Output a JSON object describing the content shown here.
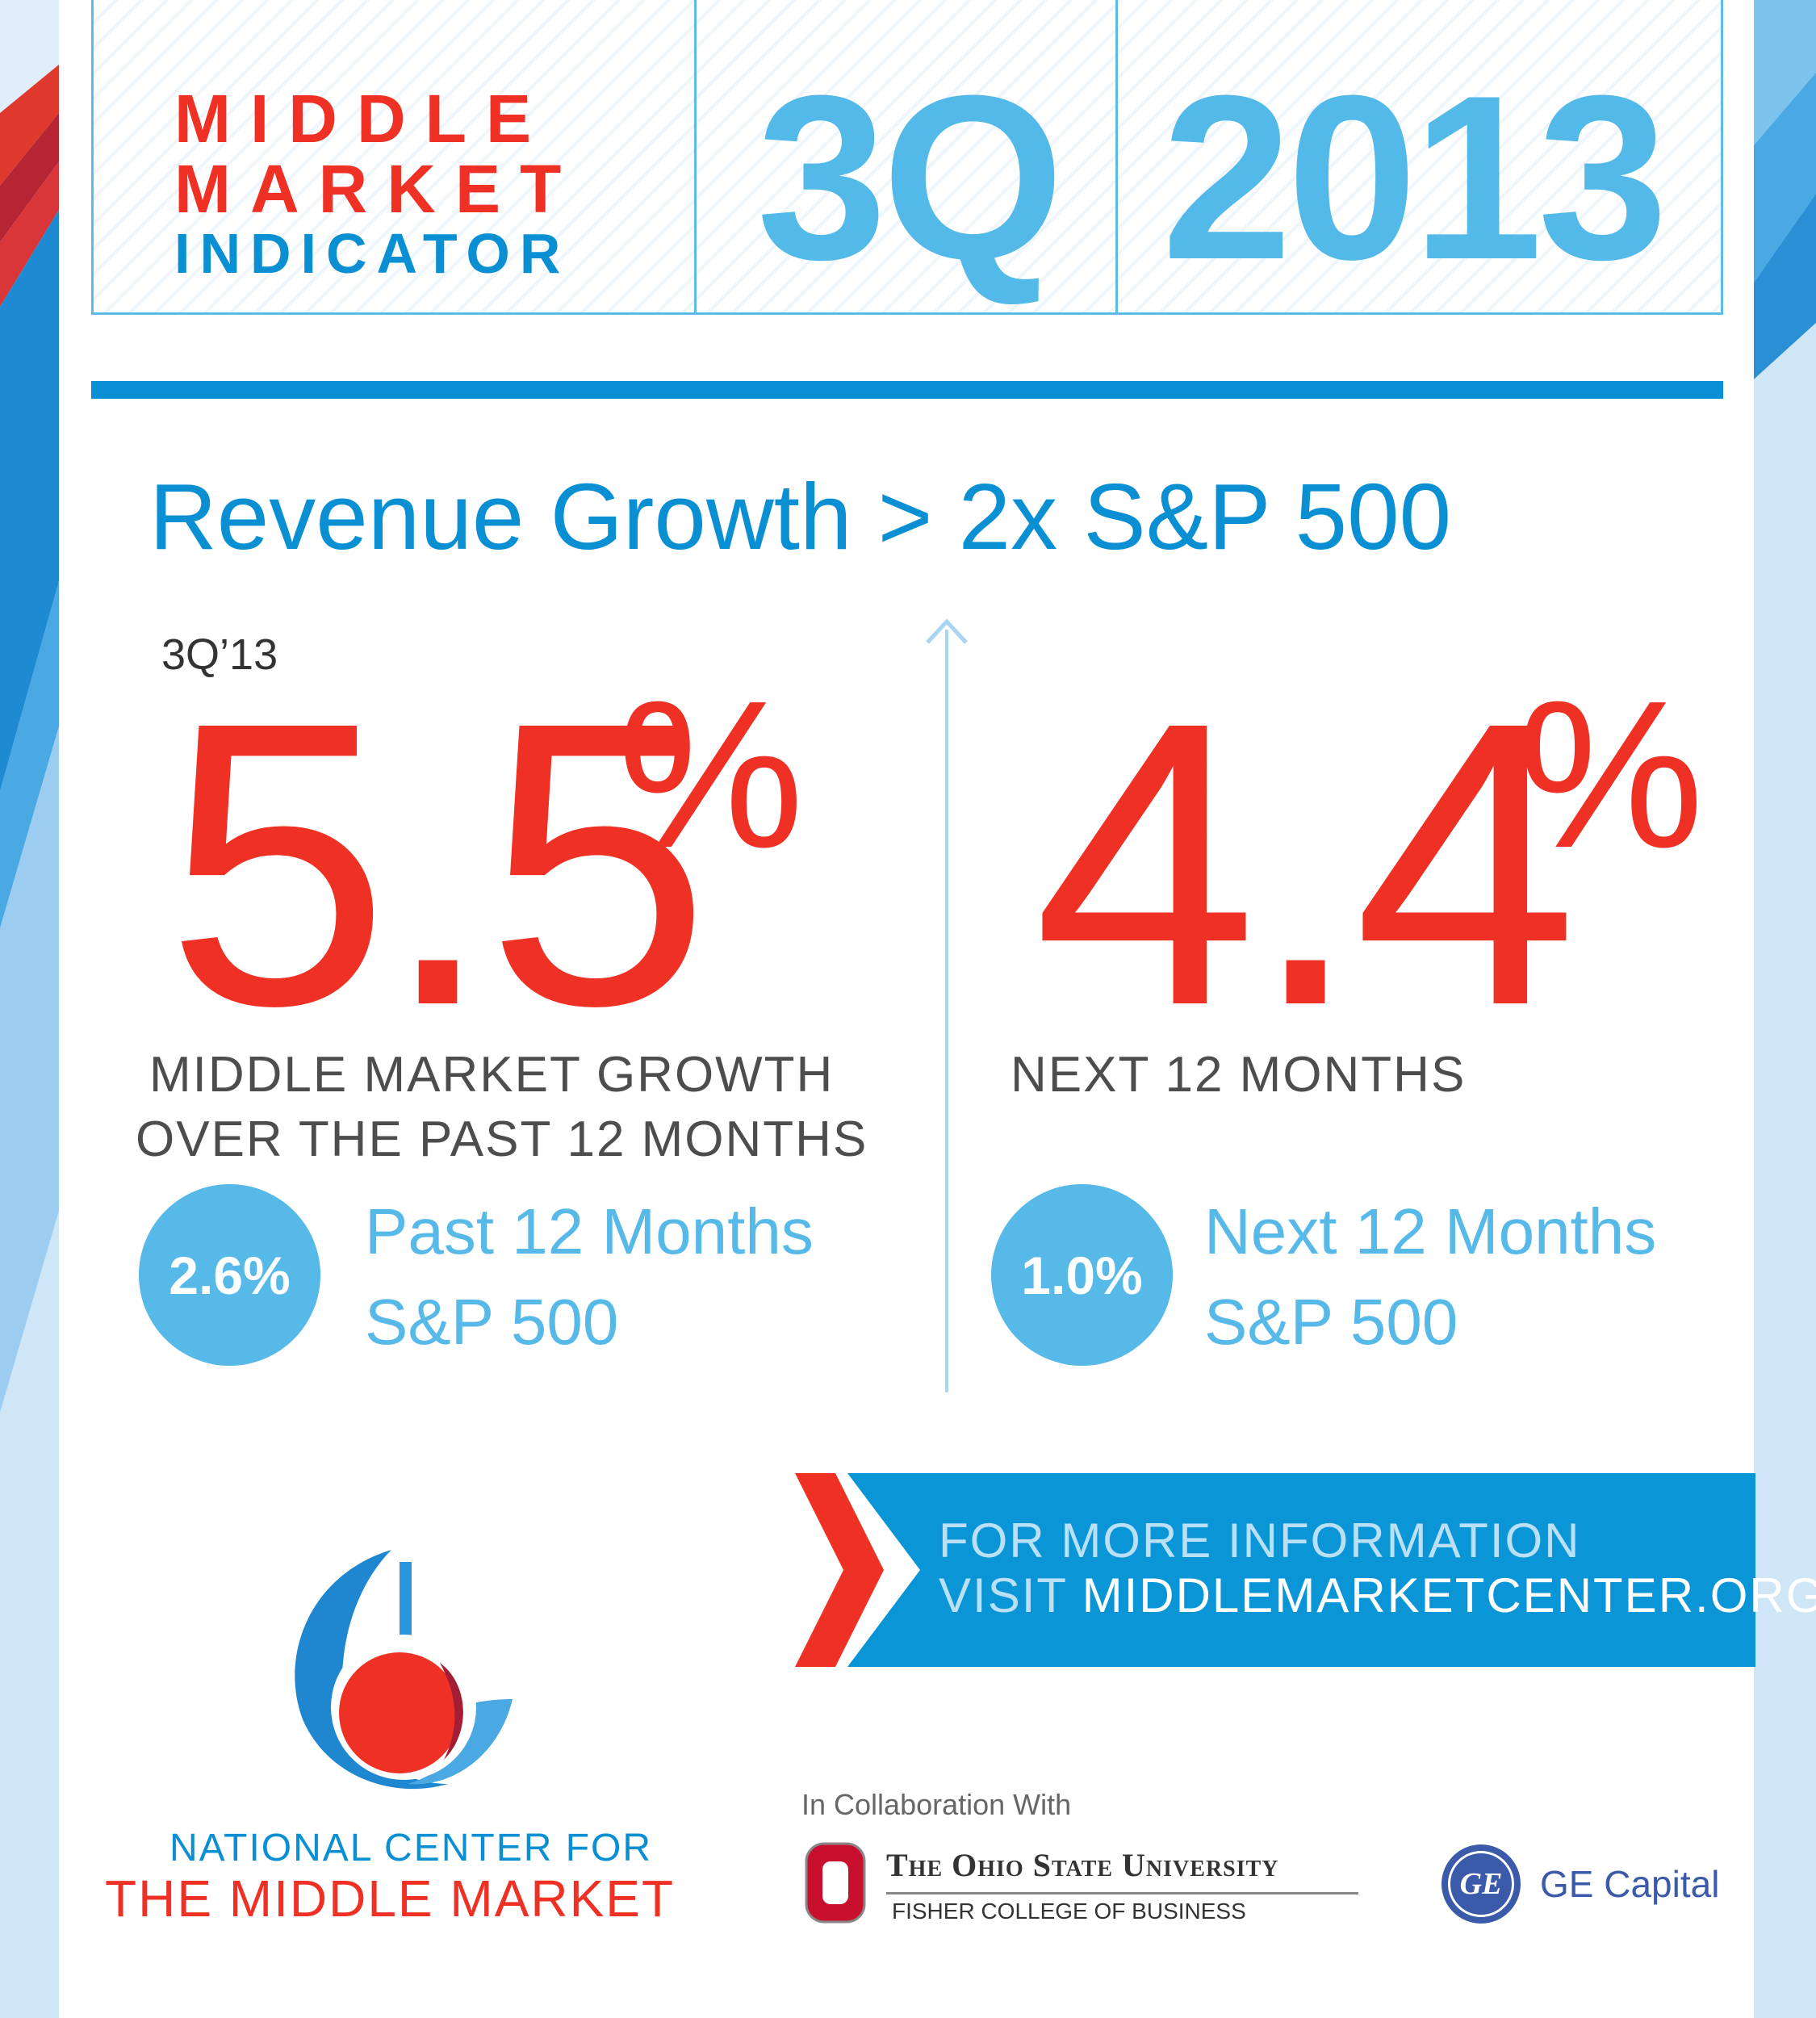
{
  "header": {
    "title_line1": "MIDDLE",
    "title_line2": "MARKET",
    "title_line3": "INDICATOR",
    "quarter": "3Q",
    "year": "2013"
  },
  "headline": "Revenue Growth > 2x S&P 500",
  "left": {
    "period_label": "3Q’13",
    "value": "5.5",
    "percent_sign": "%",
    "description_line1": "MIDDLE MARKET GROWTH",
    "description_line2": "OVER THE PAST 12 MONTHS",
    "compare_value": "2.6%",
    "compare_line1": "Past 12 Months",
    "compare_line2": "S&P 500"
  },
  "right": {
    "value": "4.4",
    "percent_sign": "%",
    "description": "NEXT 12 MONTHS",
    "compare_value": "1.0%",
    "compare_line1": "Next 12 Months",
    "compare_line2": "S&P 500"
  },
  "info": {
    "line1": "FOR MORE INFORMATION",
    "line2_prefix": "VISIT ",
    "line2_url": "MIDDLEMARKETCENTER.ORG"
  },
  "footer": {
    "org_line1": "NATIONAL CENTER FOR",
    "org_line2": "THE MIDDLE MARKET",
    "collab_label": "In Collaboration With",
    "osu_name": "The Ohio State University",
    "osu_sub": "FISHER COLLEGE OF BUSINESS",
    "ge_monogram": "GE",
    "ge_name": "GE Capital"
  },
  "colors": {
    "red": "#ee3124",
    "blue": "#0b8fd3",
    "light_blue": "#57b9e8"
  }
}
